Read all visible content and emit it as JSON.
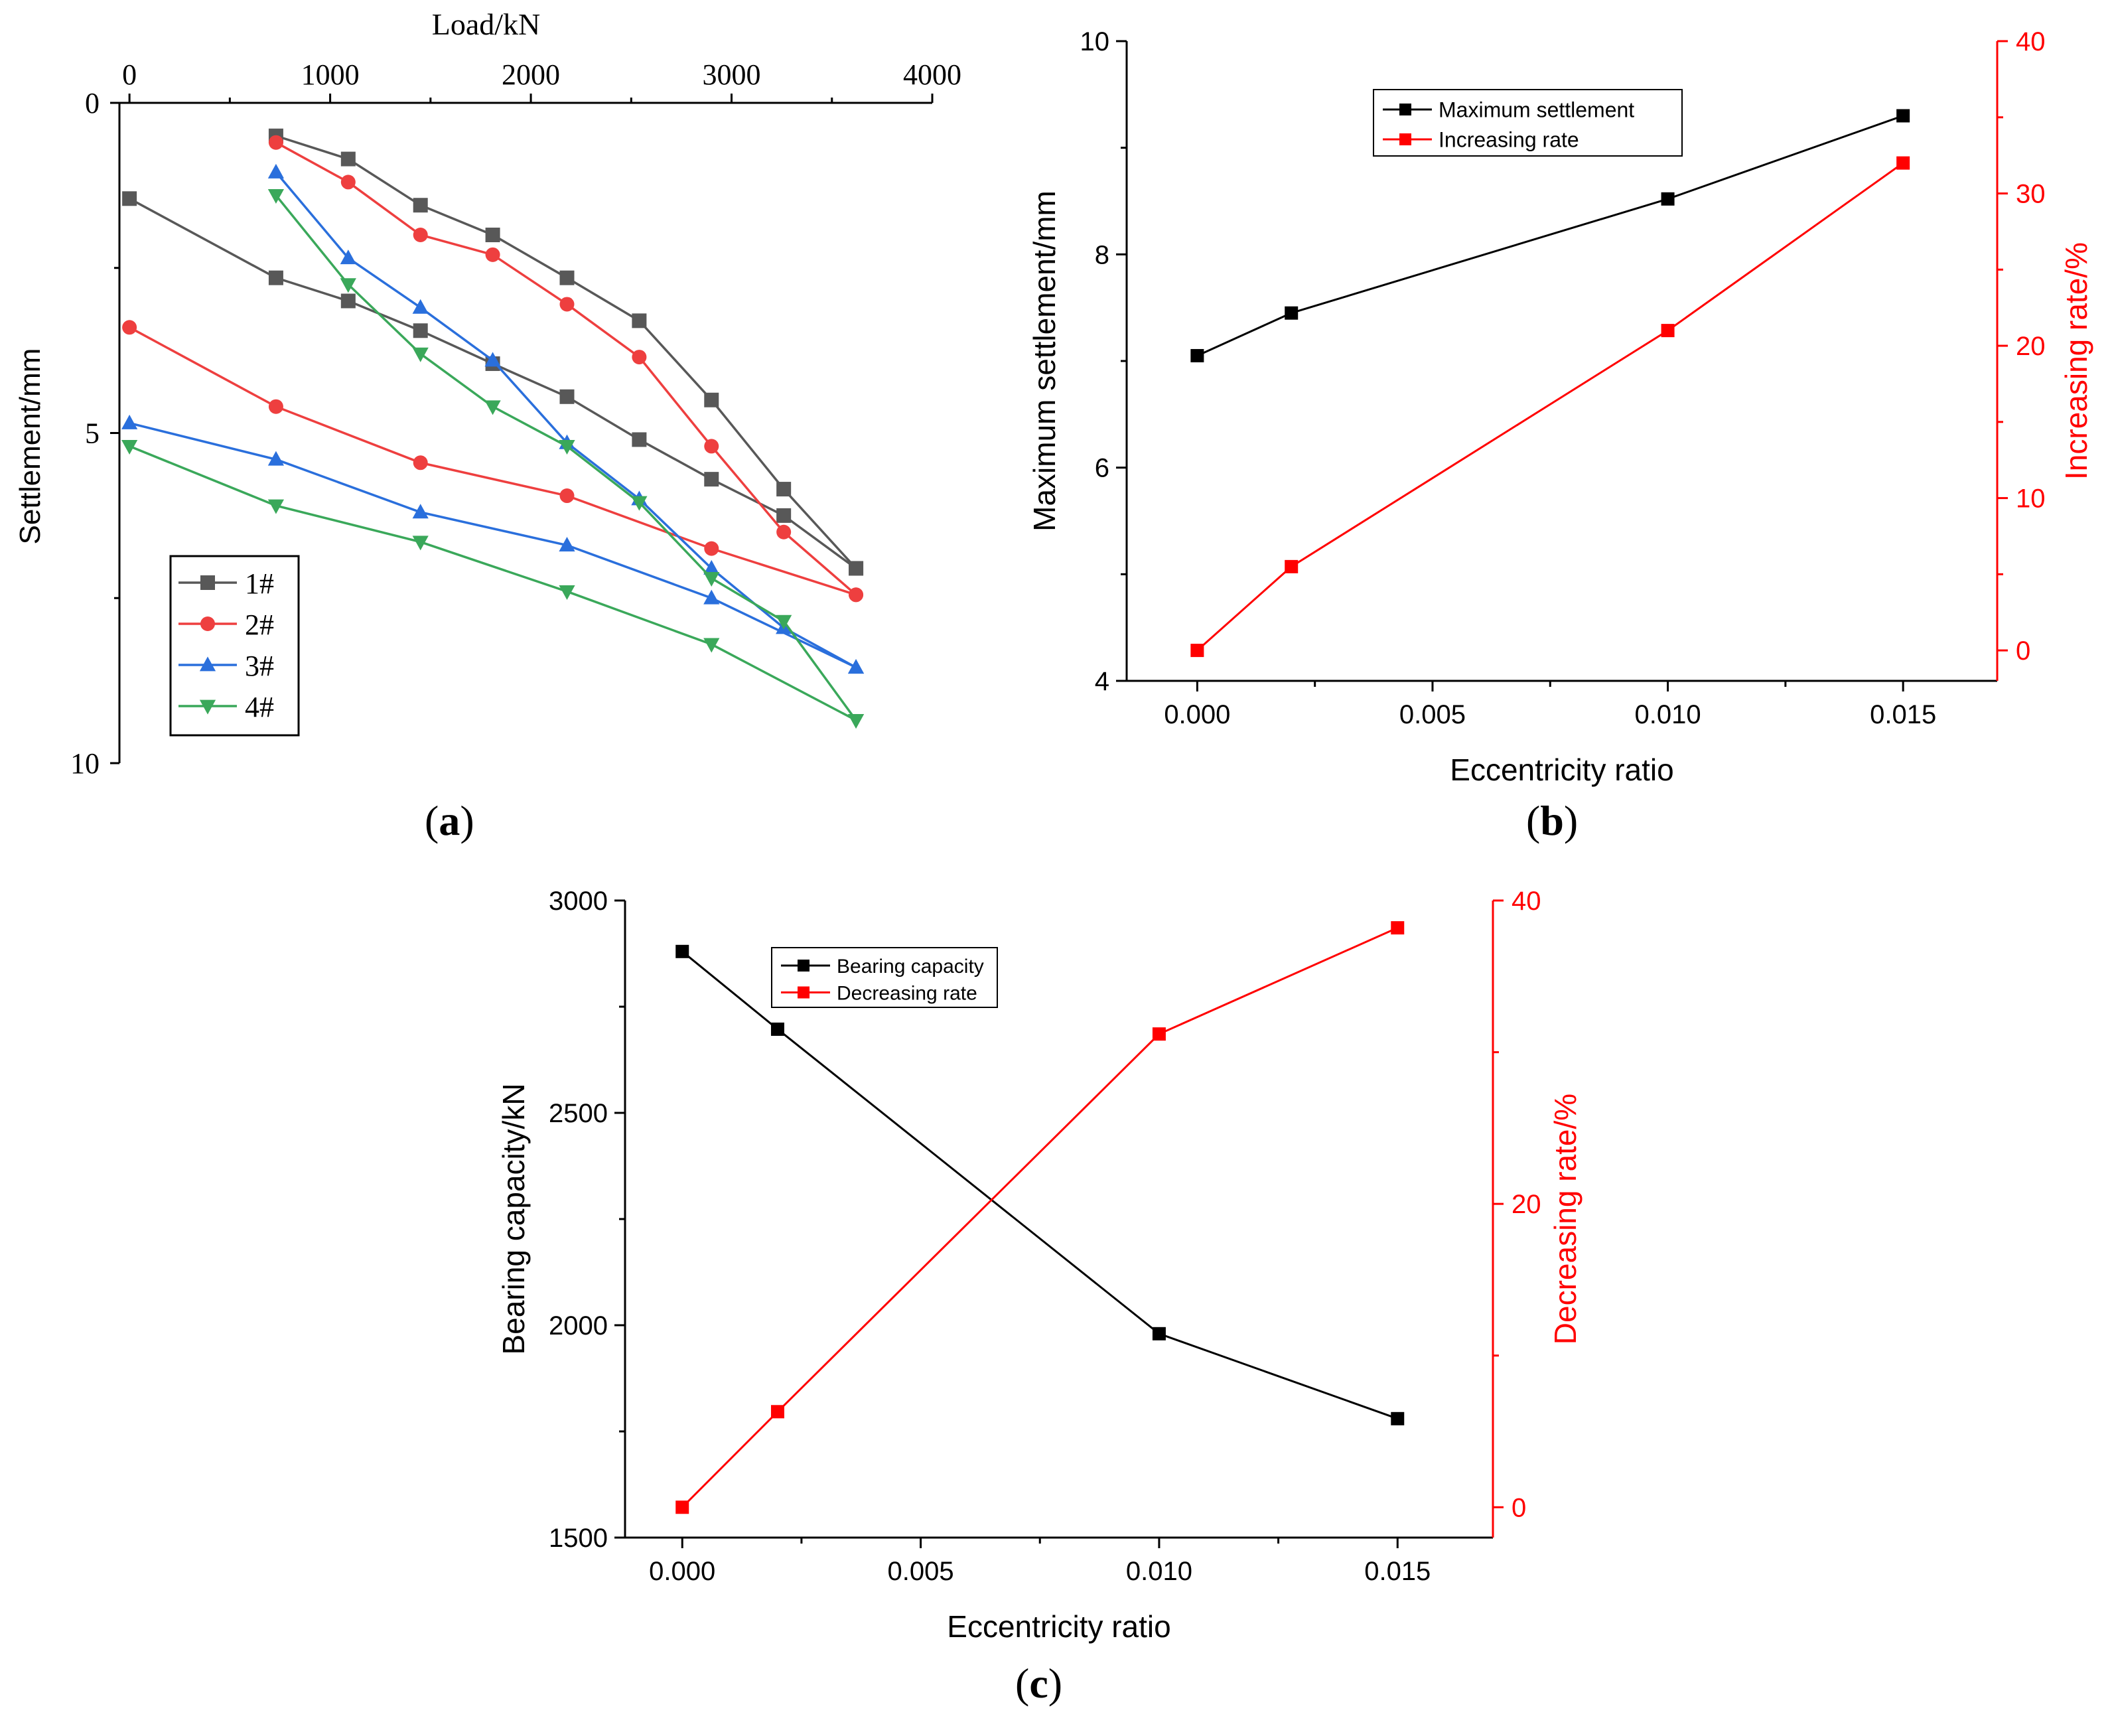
{
  "colors": {
    "series1": "#585858",
    "series2": "#ee3f3f",
    "series3": "#2a6fdc",
    "series4": "#3aa85a",
    "black": "#000000",
    "red": "#ff0000"
  },
  "chart_data": [
    {
      "panel": "(a)",
      "type": "line",
      "title": "",
      "xlabel": "Load/kN",
      "ylabel": "Settlement/mm",
      "xlim": [
        -50,
        4000
      ],
      "ylim": [
        0,
        10
      ],
      "y_inverted": true,
      "x_axis_position": "top",
      "xticks": [
        0,
        1000,
        2000,
        3000,
        4000
      ],
      "yticks": [
        0,
        5,
        10
      ],
      "legend_position": "bottom-left",
      "grid": false,
      "series": [
        {
          "name": "1#",
          "marker": "square",
          "color": "#585858",
          "x": [
            0,
            730,
            1090,
            1450,
            1810,
            2180,
            2540,
            2900,
            3260,
            3620
          ],
          "y": [
            1.45,
            2.65,
            3.0,
            3.45,
            3.95,
            4.45,
            5.1,
            5.7,
            6.25,
            7.05
          ]
        },
        {
          "name": "2#",
          "marker": "circle",
          "color": "#ee3f3f",
          "x": [
            0,
            730,
            1450,
            2180,
            2900,
            3620
          ],
          "y": [
            3.4,
            4.6,
            5.45,
            5.95,
            6.75,
            7.45
          ]
        },
        {
          "name": "3#",
          "marker": "triangle-up",
          "color": "#2a6fdc",
          "x": [
            0,
            730,
            1450,
            2180,
            2900,
            3620
          ],
          "y": [
            4.85,
            5.4,
            6.2,
            6.7,
            7.5,
            8.55
          ]
        },
        {
          "name": "4#",
          "marker": "triangle-down",
          "color": "#3aa85a",
          "x": [
            0,
            730,
            1450,
            2180,
            2900,
            3620
          ],
          "y": [
            5.2,
            6.1,
            6.65,
            7.4,
            8.2,
            9.35
          ]
        },
        {
          "name": "1#",
          "marker": "square",
          "color": "#585858",
          "x": [
            730,
            1090,
            1450,
            1810,
            2180,
            2540,
            2900,
            3260,
            3620
          ],
          "y": [
            0.5,
            0.85,
            1.55,
            2.0,
            2.65,
            3.3,
            4.5,
            5.85,
            7.05
          ]
        },
        {
          "name": "2#",
          "marker": "circle",
          "color": "#ee3f3f",
          "x": [
            730,
            1090,
            1450,
            1810,
            2180,
            2540,
            2900,
            3260,
            3620
          ],
          "y": [
            0.6,
            1.2,
            2.0,
            2.3,
            3.05,
            3.85,
            5.2,
            6.5,
            7.45
          ]
        },
        {
          "name": "3#",
          "marker": "triangle-up",
          "color": "#2a6fdc",
          "x": [
            730,
            1090,
            1450,
            1810,
            2180,
            2540,
            2900,
            3260,
            3620
          ],
          "y": [
            1.05,
            2.35,
            3.1,
            3.9,
            5.15,
            6.0,
            7.05,
            7.95,
            8.55
          ]
        },
        {
          "name": "4#",
          "marker": "triangle-down",
          "color": "#3aa85a",
          "x": [
            730,
            1090,
            1450,
            1810,
            2180,
            2540,
            2900,
            3260,
            3620
          ],
          "y": [
            1.4,
            2.75,
            3.8,
            4.6,
            5.2,
            6.05,
            7.2,
            7.85,
            9.35
          ]
        }
      ]
    },
    {
      "panel": "(b)",
      "type": "line",
      "title": "",
      "xlabel": "Eccentricity ratio",
      "ylabel": "Maximum settlement/mm",
      "y2label": "Increasing rate/%",
      "xlim": [
        -0.0015,
        0.017
      ],
      "ylim": [
        4,
        10
      ],
      "y2lim": [
        -2,
        40
      ],
      "xticks": [
        0.0,
        0.005,
        0.01,
        0.015
      ],
      "xtick_labels": [
        "0.000",
        "0.005",
        "0.010",
        "0.015"
      ],
      "yticks": [
        4,
        6,
        8,
        10
      ],
      "y2ticks": [
        0,
        10,
        20,
        30,
        40
      ],
      "legend_position": "top-left",
      "grid": false,
      "series": [
        {
          "name": "Maximum settlement",
          "axis": "left",
          "marker": "square",
          "color": "#000000",
          "x": [
            0.0,
            0.002,
            0.01,
            0.015
          ],
          "y": [
            7.05,
            7.45,
            8.52,
            9.3
          ]
        },
        {
          "name": "Increasing rate",
          "axis": "right",
          "marker": "square",
          "color": "#ff0000",
          "x": [
            0.0,
            0.002,
            0.01,
            0.015
          ],
          "y": [
            0.0,
            5.5,
            21.0,
            32.0
          ]
        }
      ]
    },
    {
      "panel": "(c)",
      "type": "line",
      "title": "",
      "xlabel": "Eccentricity ratio",
      "ylabel": "Bearing capacity/kN",
      "y2label": "Decreasing rate/%",
      "xlim": [
        -0.0012,
        0.017
      ],
      "ylim": [
        1500,
        3000
      ],
      "y2lim": [
        -2,
        40
      ],
      "xticks": [
        0.0,
        0.005,
        0.01,
        0.015
      ],
      "xtick_labels": [
        "0.000",
        "0.005",
        "0.010",
        "0.015"
      ],
      "yticks": [
        1500,
        2000,
        2500,
        3000
      ],
      "y2ticks": [
        0,
        20,
        40
      ],
      "legend_position": "top-left",
      "grid": false,
      "series": [
        {
          "name": "Bearing capacity",
          "axis": "left",
          "marker": "square",
          "color": "#000000",
          "x": [
            0.0,
            0.002,
            0.01,
            0.015
          ],
          "y": [
            2880,
            2697,
            1980,
            1780
          ]
        },
        {
          "name": "Decreasing rate",
          "axis": "right",
          "marker": "square",
          "color": "#ff0000",
          "x": [
            0.0,
            0.002,
            0.01,
            0.015
          ],
          "y": [
            0.0,
            6.3,
            31.2,
            38.2
          ]
        }
      ]
    }
  ],
  "labels": {
    "a": [
      "(",
      "a",
      ")"
    ],
    "b": [
      "(",
      "b",
      ")"
    ],
    "c": [
      "(",
      "c",
      ")"
    ]
  }
}
